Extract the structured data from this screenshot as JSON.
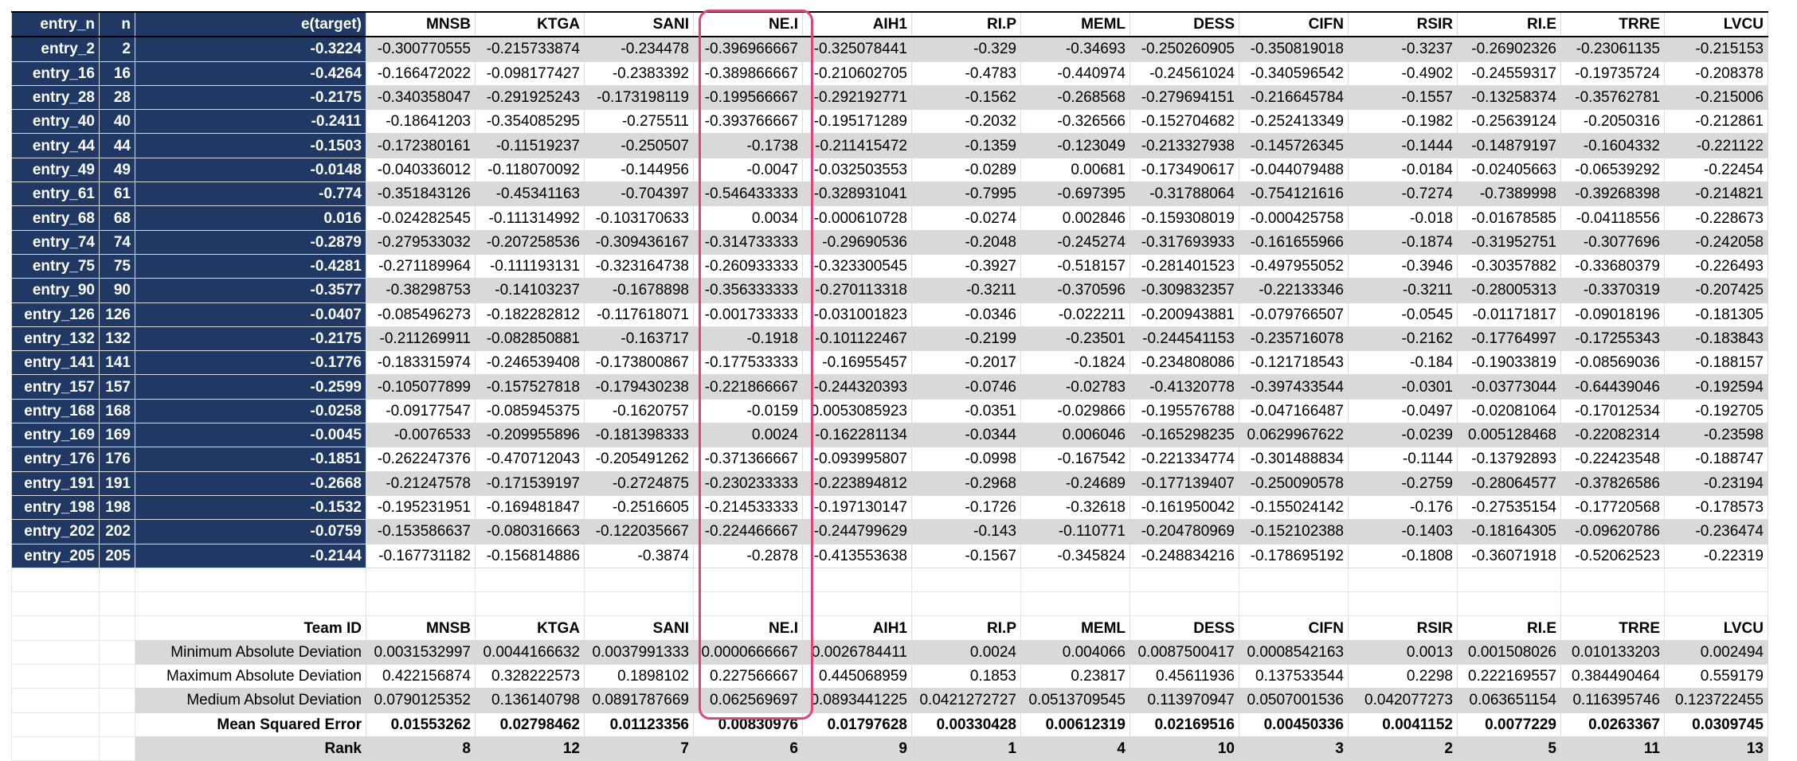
{
  "header": {
    "labels": [
      "entry_n",
      "n",
      "e(target)"
    ],
    "teams": [
      "MNSB",
      "KTGA",
      "SANI",
      "NE.I",
      "AIH1",
      "RI.P",
      "MEML",
      "DESS",
      "CIFN",
      "RSIR",
      "RI.E",
      "TRRE",
      "LVCU"
    ]
  },
  "rows": [
    {
      "entry": "entry_2",
      "n": "2",
      "target": "-0.3224",
      "vals": [
        "-0.300770555",
        "-0.215733874",
        "-0.234478",
        "-0.396966667",
        "-0.325078441",
        "-0.329",
        "-0.34693",
        "-0.250260905",
        "-0.350819018",
        "-0.3237",
        "-0.26902326",
        "-0.23061135",
        "-0.215153"
      ]
    },
    {
      "entry": "entry_16",
      "n": "16",
      "target": "-0.4264",
      "vals": [
        "-0.166472022",
        "-0.098177427",
        "-0.2383392",
        "-0.389866667",
        "-0.210602705",
        "-0.4783",
        "-0.440974",
        "-0.24561024",
        "-0.340596542",
        "-0.4902",
        "-0.24559317",
        "-0.19735724",
        "-0.208378"
      ]
    },
    {
      "entry": "entry_28",
      "n": "28",
      "target": "-0.2175",
      "vals": [
        "-0.340358047",
        "-0.291925243",
        "-0.173198119",
        "-0.199566667",
        "-0.292192771",
        "-0.1562",
        "-0.268568",
        "-0.279694151",
        "-0.216645784",
        "-0.1557",
        "-0.13258374",
        "-0.35762781",
        "-0.215006"
      ]
    },
    {
      "entry": "entry_40",
      "n": "40",
      "target": "-0.2411",
      "vals": [
        "-0.18641203",
        "-0.354085295",
        "-0.275511",
        "-0.393766667",
        "-0.195171289",
        "-0.2032",
        "-0.326566",
        "-0.152704682",
        "-0.252413349",
        "-0.1982",
        "-0.25639124",
        "-0.2050316",
        "-0.212861"
      ]
    },
    {
      "entry": "entry_44",
      "n": "44",
      "target": "-0.1503",
      "vals": [
        "-0.172380161",
        "-0.11519237",
        "-0.250507",
        "-0.1738",
        "-0.211415472",
        "-0.1359",
        "-0.123049",
        "-0.213327938",
        "-0.145726345",
        "-0.1444",
        "-0.14879197",
        "-0.1604332",
        "-0.221122"
      ]
    },
    {
      "entry": "entry_49",
      "n": "49",
      "target": "-0.0148",
      "vals": [
        "-0.040336012",
        "-0.118070092",
        "-0.144956",
        "-0.0047",
        "-0.032503553",
        "-0.0289",
        "0.00681",
        "-0.173490617",
        "-0.044079488",
        "-0.0184",
        "-0.02405663",
        "-0.06539292",
        "-0.22454"
      ]
    },
    {
      "entry": "entry_61",
      "n": "61",
      "target": "-0.774",
      "vals": [
        "-0.351843126",
        "-0.45341163",
        "-0.704397",
        "-0.546433333",
        "-0.328931041",
        "-0.7995",
        "-0.697395",
        "-0.31788064",
        "-0.754121616",
        "-0.7274",
        "-0.7389998",
        "-0.39268398",
        "-0.214821"
      ]
    },
    {
      "entry": "entry_68",
      "n": "68",
      "target": "0.016",
      "vals": [
        "-0.024282545",
        "-0.111314992",
        "-0.103170633",
        "0.0034",
        "-0.000610728",
        "-0.0274",
        "0.002846",
        "-0.159308019",
        "-0.000425758",
        "-0.018",
        "-0.01678585",
        "-0.04118556",
        "-0.228673"
      ]
    },
    {
      "entry": "entry_74",
      "n": "74",
      "target": "-0.2879",
      "vals": [
        "-0.279533032",
        "-0.207258536",
        "-0.309436167",
        "-0.314733333",
        "-0.29690536",
        "-0.2048",
        "-0.245274",
        "-0.317693933",
        "-0.161655966",
        "-0.1874",
        "-0.31952751",
        "-0.3077696",
        "-0.242058"
      ]
    },
    {
      "entry": "entry_75",
      "n": "75",
      "target": "-0.4281",
      "vals": [
        "-0.271189964",
        "-0.111193131",
        "-0.323164738",
        "-0.260933333",
        "-0.323300545",
        "-0.3927",
        "-0.518157",
        "-0.281401523",
        "-0.497955052",
        "-0.3946",
        "-0.30357882",
        "-0.33680379",
        "-0.226493"
      ]
    },
    {
      "entry": "entry_90",
      "n": "90",
      "target": "-0.3577",
      "vals": [
        "-0.38298753",
        "-0.14103237",
        "-0.1678898",
        "-0.356333333",
        "-0.270113318",
        "-0.3211",
        "-0.370596",
        "-0.309832357",
        "-0.22133346",
        "-0.3211",
        "-0.28005313",
        "-0.3370319",
        "-0.207425"
      ]
    },
    {
      "entry": "entry_126",
      "n": "126",
      "target": "-0.0407",
      "vals": [
        "-0.085496273",
        "-0.182282812",
        "-0.117618071",
        "-0.001733333",
        "-0.031001823",
        "-0.0346",
        "-0.022211",
        "-0.200943881",
        "-0.079766507",
        "-0.0545",
        "-0.01171817",
        "-0.09018196",
        "-0.181305"
      ]
    },
    {
      "entry": "entry_132",
      "n": "132",
      "target": "-0.2175",
      "vals": [
        "-0.211269911",
        "-0.082850881",
        "-0.163717",
        "-0.1918",
        "-0.101122467",
        "-0.2199",
        "-0.23501",
        "-0.244541153",
        "-0.235716078",
        "-0.2162",
        "-0.17764997",
        "-0.17255343",
        "-0.183843"
      ]
    },
    {
      "entry": "entry_141",
      "n": "141",
      "target": "-0.1776",
      "vals": [
        "-0.183315974",
        "-0.246539408",
        "-0.173800867",
        "-0.177533333",
        "-0.16955457",
        "-0.2017",
        "-0.1824",
        "-0.234808086",
        "-0.121718543",
        "-0.184",
        "-0.19033819",
        "-0.08569036",
        "-0.188157"
      ]
    },
    {
      "entry": "entry_157",
      "n": "157",
      "target": "-0.2599",
      "vals": [
        "-0.105077899",
        "-0.157527818",
        "-0.179430238",
        "-0.221866667",
        "-0.244320393",
        "-0.0746",
        "-0.02783",
        "-0.41320778",
        "-0.397433544",
        "-0.0301",
        "-0.03773044",
        "-0.64439046",
        "-0.192594"
      ]
    },
    {
      "entry": "entry_168",
      "n": "168",
      "target": "-0.0258",
      "vals": [
        "-0.09177547",
        "-0.085945375",
        "-0.1620757",
        "-0.0159",
        "0.0053085923",
        "-0.0351",
        "-0.029866",
        "-0.195576788",
        "-0.047166487",
        "-0.0497",
        "-0.02081064",
        "-0.17012534",
        "-0.192705"
      ]
    },
    {
      "entry": "entry_169",
      "n": "169",
      "target": "-0.0045",
      "vals": [
        "-0.0076533",
        "-0.209955896",
        "-0.181398333",
        "0.0024",
        "-0.162281134",
        "-0.0344",
        "0.006046",
        "-0.165298235",
        "0.0629967622",
        "-0.0239",
        "0.005128468",
        "-0.22082314",
        "-0.23598"
      ]
    },
    {
      "entry": "entry_176",
      "n": "176",
      "target": "-0.1851",
      "vals": [
        "-0.262247376",
        "-0.470712043",
        "-0.205491262",
        "-0.371366667",
        "-0.093995807",
        "-0.0998",
        "-0.167542",
        "-0.221334774",
        "-0.301488834",
        "-0.1144",
        "-0.13792893",
        "-0.22423548",
        "-0.188747"
      ]
    },
    {
      "entry": "entry_191",
      "n": "191",
      "target": "-0.2668",
      "vals": [
        "-0.21247578",
        "-0.171539197",
        "-0.2724875",
        "-0.230233333",
        "-0.223894812",
        "-0.2968",
        "-0.24689",
        "-0.177139407",
        "-0.250090578",
        "-0.2759",
        "-0.28064577",
        "-0.37826586",
        "-0.23194"
      ]
    },
    {
      "entry": "entry_198",
      "n": "198",
      "target": "-0.1532",
      "vals": [
        "-0.195231951",
        "-0.169481847",
        "-0.2516605",
        "-0.214533333",
        "-0.197130147",
        "-0.1726",
        "-0.32618",
        "-0.161950042",
        "-0.155024142",
        "-0.176",
        "-0.27535154",
        "-0.17720568",
        "-0.178573"
      ]
    },
    {
      "entry": "entry_202",
      "n": "202",
      "target": "-0.0759",
      "vals": [
        "-0.153586637",
        "-0.080316663",
        "-0.122035667",
        "-0.224466667",
        "-0.244799629",
        "-0.143",
        "-0.110771",
        "-0.204780969",
        "-0.152102388",
        "-0.1403",
        "-0.18164305",
        "-0.09620786",
        "-0.236474"
      ]
    },
    {
      "entry": "entry_205",
      "n": "205",
      "target": "-0.2144",
      "vals": [
        "-0.167731182",
        "-0.156814886",
        "-0.3874",
        "-0.2878",
        "-0.413553638",
        "-0.1567",
        "-0.345824",
        "-0.248834216",
        "-0.178695192",
        "-0.1808",
        "-0.36071918",
        "-0.52062523",
        "-0.22319"
      ]
    }
  ],
  "summary": {
    "team_id_label": "Team ID",
    "teams": [
      "MNSB",
      "KTGA",
      "SANI",
      "NE.I",
      "AIH1",
      "RI.P",
      "MEML",
      "DESS",
      "CIFN",
      "RSIR",
      "RI.E",
      "TRRE",
      "LVCU"
    ],
    "rows": [
      {
        "label": "Minimum Absolute Deviation",
        "vals": [
          "0.0031532997",
          "0.0044166632",
          "0.0037991333",
          "0.0000666667",
          "0.0026784411",
          "0.0024",
          "0.004066",
          "0.0087500417",
          "0.0008542163",
          "0.0013",
          "0.001508026",
          "0.010133203",
          "0.002494"
        ]
      },
      {
        "label": "Maximum Absolute Deviation",
        "vals": [
          "0.422156874",
          "0.328222573",
          "0.1898102",
          "0.227566667",
          "0.445068959",
          "0.1853",
          "0.23817",
          "0.45611936",
          "0.137533544",
          "0.2298",
          "0.222169557",
          "0.384490464",
          "0.559179"
        ]
      },
      {
        "label": "Medium Absolut Deviation",
        "vals": [
          "0.0790125352",
          "0.136140798",
          "0.0891787669",
          "0.062569697",
          "0.0893441225",
          "0.0421272727",
          "0.0513709545",
          "0.113970947",
          "0.0507001536",
          "0.042077273",
          "0.063651154",
          "0.116395746",
          "0.123722455"
        ]
      },
      {
        "label": "Mean Squared Error",
        "vals": [
          "0.01553262",
          "0.02798462",
          "0.01123356",
          "0.00830976",
          "0.01797628",
          "0.00330428",
          "0.00612319",
          "0.02169516",
          "0.00450336",
          "0.0041152",
          "0.0077229",
          "0.0263367",
          "0.0309745"
        ]
      },
      {
        "label": "Rank",
        "vals": [
          "8",
          "12",
          "7",
          "6",
          "9",
          "1",
          "4",
          "10",
          "3",
          "2",
          "5",
          "11",
          "13"
        ]
      }
    ]
  },
  "highlight_color": "#e2437a",
  "navy_color": "#1f3864"
}
